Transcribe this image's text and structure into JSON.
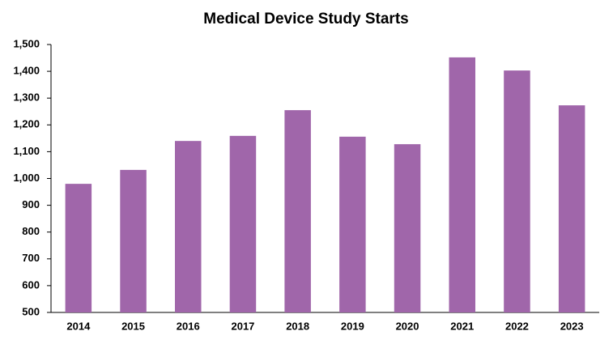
{
  "chart_data": {
    "type": "bar",
    "title": "Medical Device Study Starts",
    "categories": [
      "2014",
      "2015",
      "2016",
      "2017",
      "2018",
      "2019",
      "2020",
      "2021",
      "2022",
      "2023"
    ],
    "values": [
      980,
      1032,
      1140,
      1159,
      1255,
      1156,
      1128,
      1452,
      1403,
      1273
    ],
    "color": "#a066aa",
    "ylim": [
      500,
      1500
    ],
    "yticks": [
      500,
      600,
      700,
      800,
      900,
      {
        "value": 1000,
        "label": "1,000"
      },
      {
        "value": 1100,
        "label": "1,100"
      },
      {
        "value": 1200,
        "label": "1,200"
      },
      {
        "value": 1300,
        "label": "1,300"
      },
      {
        "value": 1400,
        "label": "1,400"
      },
      {
        "value": 1500,
        "label": "1,500"
      }
    ],
    "grid": false
  }
}
